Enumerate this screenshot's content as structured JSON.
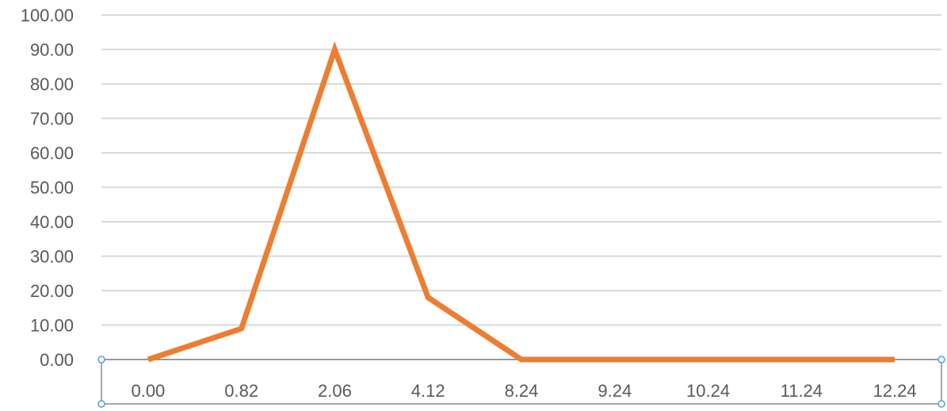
{
  "chart_data": {
    "type": "line",
    "categories": [
      "0.00",
      "0.82",
      "2.06",
      "4.12",
      "8.24",
      "9.24",
      "10.24",
      "11.24",
      "12.24"
    ],
    "series": [
      {
        "values": [
          0,
          9,
          90,
          18,
          0,
          0,
          0,
          0,
          0
        ],
        "color": "#ed7d31"
      }
    ],
    "ylim": [
      0,
      100
    ],
    "yticks": [
      "0.00",
      "10.00",
      "20.00",
      "30.00",
      "40.00",
      "50.00",
      "60.00",
      "70.00",
      "80.00",
      "90.00",
      "100.00"
    ],
    "grid": true,
    "legend": "none"
  }
}
